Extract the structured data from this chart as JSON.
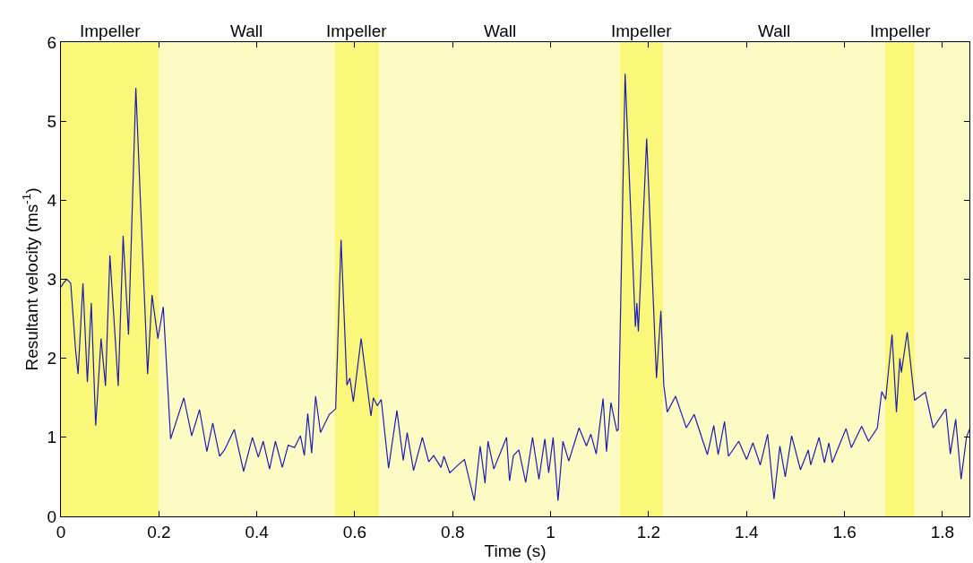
{
  "chart_data": {
    "type": "line",
    "xlabel": "Time (s)",
    "ylabel": "Resultant velocity (ms$^{-1}$)",
    "xlim": [
      0,
      1.855
    ],
    "ylim": [
      0,
      6
    ],
    "xticks": [
      0,
      0.2,
      0.4,
      0.6,
      0.8,
      1,
      1.2,
      1.4,
      1.6,
      1.8
    ],
    "yticks": [
      0,
      1,
      2,
      3,
      4,
      5,
      6
    ],
    "grid": false,
    "marker": "none",
    "line_style": "solid",
    "bands": [
      {
        "axis": "x",
        "from": 0,
        "to": 0.2,
        "label": "Impeller",
        "color": "#fbf77a"
      },
      {
        "axis": "x",
        "from": 0.2,
        "to": 0.559,
        "label": "Wall",
        "color": "#fdfbc4"
      },
      {
        "axis": "x",
        "from": 0.559,
        "to": 0.65,
        "label": "Impeller",
        "color": "#fbf77a"
      },
      {
        "axis": "x",
        "from": 0.65,
        "to": 1.142,
        "label": "Wall",
        "color": "#fdfbc4"
      },
      {
        "axis": "x",
        "from": 1.142,
        "to": 1.23,
        "label": "Impeller",
        "color": "#fbf77a"
      },
      {
        "axis": "x",
        "from": 1.23,
        "to": 1.683,
        "label": "Wall",
        "color": "#fdfbc4"
      },
      {
        "axis": "x",
        "from": 1.683,
        "to": 1.744,
        "label": "Impeller",
        "color": "#fbf77a"
      },
      {
        "axis": "x",
        "from": 1.744,
        "to": 1.855,
        "label": null,
        "color": "#fdfbc4"
      }
    ],
    "series": [
      {
        "color": "#1c1cb4",
        "x": [
          0,
          0.005,
          0.012,
          0.02,
          0.03,
          0.035,
          0.045,
          0.054,
          0.062,
          0.071,
          0.082,
          0.091,
          0.1,
          0.117,
          0.127,
          0.138,
          0.153,
          0.162,
          0.177,
          0.186,
          0.198,
          0.209,
          0.224,
          0.251,
          0.267,
          0.283,
          0.298,
          0.31,
          0.324,
          0.334,
          0.354,
          0.373,
          0.391,
          0.403,
          0.413,
          0.426,
          0.438,
          0.452,
          0.464,
          0.477,
          0.489,
          0.497,
          0.504,
          0.512,
          0.52,
          0.53,
          0.548,
          0.561,
          0.572,
          0.584,
          0.59,
          0.597,
          0.613,
          0.633,
          0.638,
          0.646,
          0.654,
          0.669,
          0.686,
          0.699,
          0.707,
          0.72,
          0.738,
          0.751,
          0.761,
          0.776,
          0.782,
          0.794,
          0.809,
          0.824,
          0.844,
          0.856,
          0.866,
          0.872,
          0.884,
          0.91,
          0.916,
          0.924,
          0.935,
          0.949,
          0.963,
          0.976,
          0.988,
          0.996,
          1.005,
          1.015,
          1.025,
          1.037,
          1.058,
          1.073,
          1.082,
          1.093,
          1.107,
          1.114,
          1.123,
          1.135,
          1.138,
          1.152,
          1.173,
          1.176,
          1.179,
          1.196,
          1.216,
          1.225,
          1.231,
          1.238,
          1.255,
          1.277,
          1.293,
          1.32,
          1.333,
          1.342,
          1.355,
          1.363,
          1.384,
          1.4,
          1.413,
          1.428,
          1.443,
          1.456,
          1.468,
          1.479,
          1.492,
          1.51,
          1.526,
          1.531,
          1.548,
          1.559,
          1.568,
          1.575,
          1.586,
          1.603,
          1.614,
          1.635,
          1.649,
          1.667,
          1.676,
          1.684,
          1.697,
          1.706,
          1.713,
          1.716,
          1.728,
          1.743,
          1.765,
          1.781,
          1.807,
          1.816,
          1.827,
          1.838,
          1.849,
          1.855
        ],
        "values": [
          2.9,
          2.95,
          3.0,
          2.95,
          2.1,
          1.8,
          2.95,
          1.7,
          2.7,
          1.15,
          2.25,
          1.65,
          3.3,
          1.65,
          3.55,
          2.3,
          5.42,
          4.04,
          1.8,
          2.8,
          2.25,
          2.65,
          0.98,
          1.5,
          1.02,
          1.35,
          0.82,
          1.18,
          0.76,
          0.84,
          1.1,
          0.57,
          1.0,
          0.75,
          0.95,
          0.6,
          0.95,
          0.62,
          0.9,
          0.87,
          1.02,
          0.77,
          1.3,
          0.8,
          1.52,
          1.06,
          1.29,
          1.36,
          3.5,
          1.66,
          1.75,
          1.45,
          2.25,
          1.27,
          1.5,
          1.4,
          1.48,
          0.61,
          1.34,
          0.71,
          1.06,
          0.58,
          1.0,
          0.69,
          0.77,
          0.62,
          0.76,
          0.55,
          0.64,
          0.72,
          0.2,
          0.89,
          0.42,
          0.95,
          0.6,
          1.0,
          0.45,
          0.77,
          0.84,
          0.43,
          1.0,
          0.47,
          0.98,
          0.55,
          1.0,
          0.2,
          0.95,
          0.7,
          1.12,
          0.89,
          1.04,
          0.79,
          1.49,
          0.82,
          1.44,
          1.08,
          1.1,
          5.6,
          2.4,
          2.7,
          2.34,
          4.78,
          1.75,
          2.6,
          1.66,
          1.32,
          1.52,
          1.12,
          1.29,
          0.78,
          1.15,
          0.78,
          1.2,
          0.76,
          0.95,
          0.72,
          0.93,
          0.65,
          1.04,
          0.22,
          0.89,
          0.5,
          1.02,
          0.59,
          0.84,
          0.65,
          1.0,
          0.68,
          0.93,
          0.68,
          0.85,
          1.11,
          0.87,
          1.14,
          0.95,
          1.12,
          1.58,
          1.48,
          2.3,
          1.32,
          2.0,
          1.82,
          2.33,
          1.47,
          1.57,
          1.12,
          1.36,
          0.79,
          1.23,
          0.47,
          1.0,
          1.1
        ]
      }
    ]
  }
}
